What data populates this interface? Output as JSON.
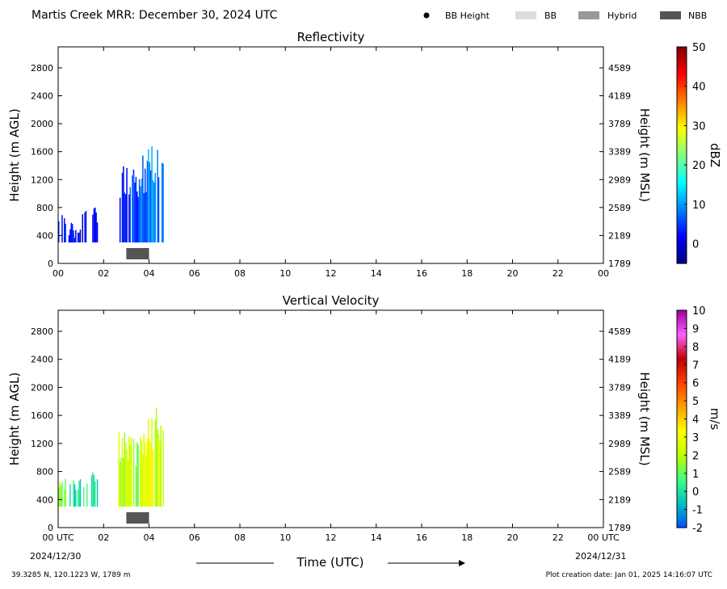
{
  "header": {
    "title": "Martis Creek MRR:  December 30, 2024 UTC",
    "legend": [
      {
        "label": "BB Height",
        "kind": "dot",
        "color": "#000000"
      },
      {
        "label": "BB",
        "kind": "bar",
        "color": "#dcdcdc"
      },
      {
        "label": "Hybrid",
        "kind": "bar",
        "color": "#999999"
      },
      {
        "label": "NBB",
        "kind": "bar",
        "color": "#555555"
      }
    ]
  },
  "footer": {
    "xlabel": "Time (UTC)",
    "start_date": "2024/12/30",
    "end_date": "2024/12/31",
    "location": "39.3285 N, 120.1223 W, 1789 m",
    "creation": "Plot creation date: Jan 01, 2025 14:16:07 UTC"
  },
  "chart_data": [
    {
      "type": "heatmap",
      "title": "Reflectivity",
      "ylabel": "Height (m AGL)",
      "y2label": "Height (m MSL)",
      "xlim": [
        0,
        24
      ],
      "ylim": [
        0,
        3100
      ],
      "x_ticks": [
        "00",
        "02",
        "04",
        "06",
        "08",
        "10",
        "12",
        "14",
        "16",
        "18",
        "20",
        "22",
        "00"
      ],
      "y_ticks": [
        0,
        400,
        800,
        1200,
        1600,
        2000,
        2400,
        2800
      ],
      "y2_ticks": [
        "1789",
        "2189",
        "2589",
        "2989",
        "3389",
        "3789",
        "4189",
        "4589"
      ],
      "colorbar": {
        "label": "dBZ",
        "range": [
          -5,
          50
        ],
        "ticks": [
          0,
          10,
          20,
          30,
          40,
          50
        ],
        "colors": [
          "#00007f",
          "#0000ff",
          "#0080ff",
          "#00ffff",
          "#80ff80",
          "#ffff00",
          "#ff8000",
          "#ff0000",
          "#7f0000"
        ]
      },
      "bright_band_events": [
        {
          "label": "NBB",
          "start": 3.0,
          "end": 4.0
        }
      ],
      "precip_segments": [
        {
          "start": 0.0,
          "end": 0.3,
          "top": 700,
          "value": 2
        },
        {
          "start": 0.45,
          "end": 0.7,
          "top": 420,
          "value": 1
        },
        {
          "start": 0.5,
          "end": 0.8,
          "top": 600,
          "value": 2
        },
        {
          "start": 0.85,
          "end": 0.95,
          "top": 500,
          "value": 1
        },
        {
          "start": 1.05,
          "end": 1.2,
          "top": 800,
          "value": 2
        },
        {
          "start": 1.5,
          "end": 1.7,
          "top": 800,
          "value": 1
        },
        {
          "start": 2.65,
          "end": 3.3,
          "top": 1400,
          "value": 4
        },
        {
          "start": 3.3,
          "end": 3.6,
          "top": 1300,
          "value": 6
        },
        {
          "start": 3.6,
          "end": 3.9,
          "top": 1550,
          "value": 8
        },
        {
          "start": 3.9,
          "end": 4.2,
          "top": 1700,
          "value": 9
        },
        {
          "start": 4.2,
          "end": 4.6,
          "top": 1780,
          "value": 7
        }
      ]
    },
    {
      "type": "heatmap",
      "title": "Vertical Velocity",
      "ylabel": "Height (m AGL)",
      "y2label": "Height (m MSL)",
      "xlim": [
        0,
        24
      ],
      "ylim": [
        0,
        3100
      ],
      "x_ticks": [
        "00 UTC",
        "02",
        "04",
        "06",
        "08",
        "10",
        "12",
        "14",
        "16",
        "18",
        "20",
        "22",
        "00 UTC"
      ],
      "y_ticks": [
        0,
        400,
        800,
        1200,
        1600,
        2000,
        2400,
        2800
      ],
      "y2_ticks": [
        "1789",
        "2189",
        "2589",
        "2989",
        "3389",
        "3789",
        "4189",
        "4589"
      ],
      "colorbar": {
        "label": "m/s",
        "range": [
          -2,
          10
        ],
        "ticks": [
          "-2",
          "-1",
          "0",
          "1",
          "2",
          "3",
          "4",
          "5",
          "6",
          "7",
          "8",
          "9",
          "10"
        ],
        "colors": [
          "#0050ff",
          "#00c0c0",
          "#40ff80",
          "#c0ff00",
          "#ffff00",
          "#ffa000",
          "#ff4000",
          "#c00000",
          "#ff60ff",
          "#a000a0"
        ]
      },
      "bright_band_events": [
        {
          "label": "NBB",
          "start": 3.0,
          "end": 4.0
        }
      ],
      "precip_segments": [
        {
          "start": 0.0,
          "end": 0.3,
          "top": 700,
          "value": 1.5
        },
        {
          "start": 0.5,
          "end": 0.95,
          "top": 700,
          "value": 0
        },
        {
          "start": 1.05,
          "end": 1.25,
          "top": 780,
          "value": 0.3
        },
        {
          "start": 1.45,
          "end": 1.7,
          "top": 900,
          "value": 0.2
        },
        {
          "start": 2.65,
          "end": 3.3,
          "top": 1400,
          "value": 2
        },
        {
          "start": 3.3,
          "end": 3.6,
          "top": 1300,
          "value": 1.6
        },
        {
          "start": 3.6,
          "end": 3.9,
          "top": 1500,
          "value": 2.5
        },
        {
          "start": 3.9,
          "end": 4.25,
          "top": 1700,
          "value": 3
        },
        {
          "start": 4.25,
          "end": 4.6,
          "top": 1780,
          "value": 2.4
        }
      ]
    }
  ]
}
